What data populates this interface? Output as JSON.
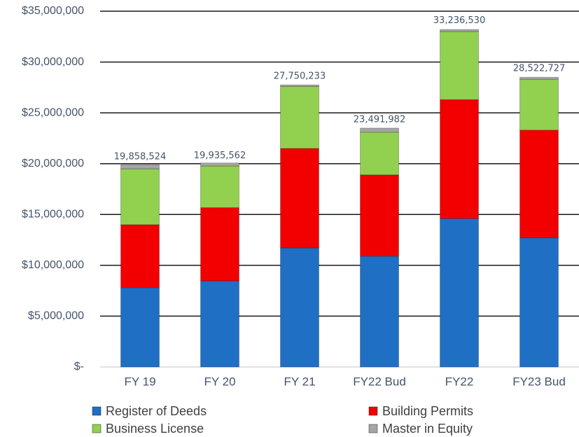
{
  "chart_data": {
    "type": "stacked_bar",
    "categories": [
      "FY 19",
      "FY 20",
      "FY 21",
      "FY22 Bud",
      "FY22",
      "FY23 Bud"
    ],
    "series": [
      {
        "name": "Register of Deeds",
        "color": "#1f6fc5",
        "values": [
          7800000,
          8470000,
          11700000,
          10900000,
          14600000,
          12700000
        ]
      },
      {
        "name": "Building Permits",
        "color": "#f20000",
        "values": [
          6200000,
          7200000,
          9800000,
          8000000,
          11700000,
          10600000
        ]
      },
      {
        "name": "Business License",
        "color": "#92d050",
        "values": [
          5500000,
          4100000,
          6100000,
          4200000,
          6700000,
          5000000
        ]
      },
      {
        "name": "Master in Equity",
        "color": "#a6a6a6",
        "values": [
          400000,
          300000,
          150000,
          400000,
          200000,
          200000
        ]
      }
    ],
    "totals": [
      19858524,
      19935562,
      27750233,
      23491982,
      33236530,
      28522727
    ],
    "total_labels": [
      "19,858,524",
      "19,935,562",
      "27,750,233",
      "23,491,982",
      "33,236,530",
      "28,522,727"
    ],
    "ylim": [
      0,
      35000000
    ],
    "yticks": [
      {
        "value": 0,
        "label": "$-"
      },
      {
        "value": 5000000,
        "label": "$5,000,000"
      },
      {
        "value": 10000000,
        "label": "$10,000,000"
      },
      {
        "value": 15000000,
        "label": "$15,000,000"
      },
      {
        "value": 20000000,
        "label": "$20,000,000"
      },
      {
        "value": 25000000,
        "label": "$25,000,000"
      },
      {
        "value": 30000000,
        "label": "$30,000,000"
      },
      {
        "value": 35000000,
        "label": "$35,000,000"
      }
    ],
    "grid": true,
    "legend": "bottom"
  }
}
